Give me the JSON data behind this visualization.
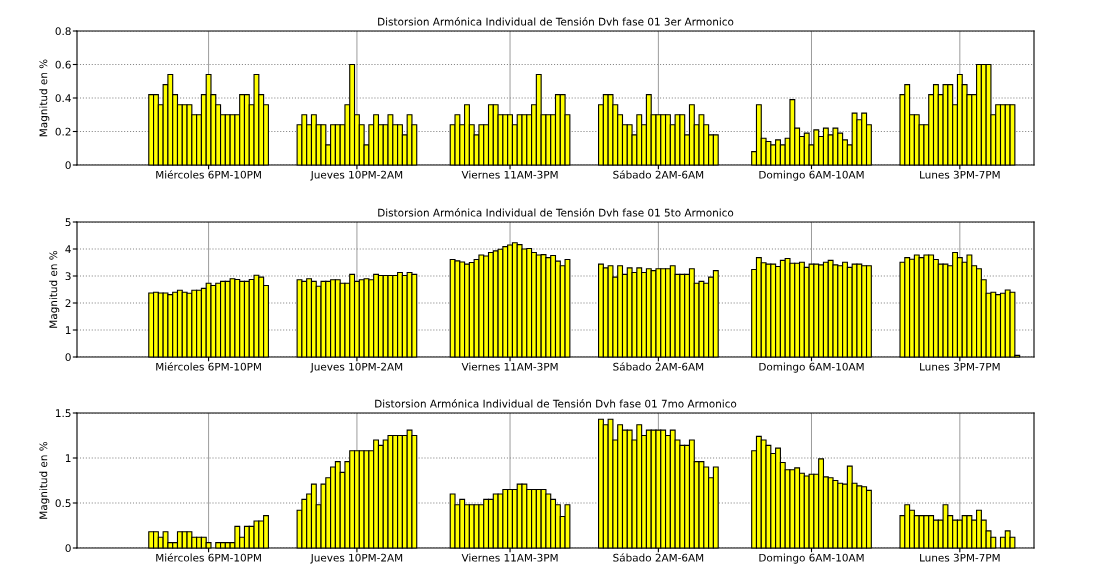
{
  "chart_data": [
    {
      "type": "bar",
      "title": "Distorsion Armónica Individual de Tensión Dvh fase 01 3er Armonico",
      "ylabel": "Magnitud en %",
      "color": "#ffff00",
      "grid": true,
      "categories": [
        null,
        null,
        null,
        null,
        null,
        null,
        null,
        null,
        null,
        null,
        null,
        null,
        null,
        null,
        null,
        null,
        null,
        null,
        null,
        null,
        null,
        null,
        null,
        null,
        null,
        null,
        null,
        "Miércoles 6PM-10PM",
        null,
        null,
        null,
        null,
        null,
        null,
        null,
        null,
        null,
        null,
        null,
        null,
        null,
        null,
        null,
        null,
        null,
        null,
        null,
        null,
        null,
        null,
        null,
        null,
        null,
        null,
        null,
        null,
        null,
        null,
        "Jueves 10PM-2AM",
        null,
        null,
        null,
        null,
        null,
        null,
        null,
        null,
        null,
        null,
        null,
        null,
        null,
        null,
        null,
        null,
        null,
        null,
        null,
        null,
        null,
        null,
        null,
        null,
        null,
        null,
        null,
        null,
        null,
        null,
        null,
        "Viernes 11AM-3PM",
        null,
        null,
        null,
        null,
        null,
        null,
        null,
        null,
        null,
        null,
        null,
        null,
        null,
        null,
        null,
        null,
        null,
        null,
        null,
        null,
        null,
        null,
        null,
        null,
        null,
        null,
        null,
        null,
        null,
        null,
        "Sábado 2AM-6AM",
        null,
        null,
        null,
        null,
        null,
        null,
        null,
        null,
        null,
        null,
        null,
        null,
        null,
        null,
        null,
        null,
        null,
        null,
        null,
        null,
        null,
        null,
        null,
        null,
        null,
        null,
        null,
        null,
        null,
        null,
        null,
        "Domingo 6AM-10AM",
        null,
        null,
        null,
        null,
        null,
        null,
        null,
        null,
        null,
        null,
        null,
        null,
        null,
        null,
        null,
        null,
        null,
        null,
        null,
        null,
        null,
        null,
        null,
        null,
        null,
        null,
        null,
        null,
        null,
        null,
        "Lunes 3PM-7PM",
        null,
        null,
        null,
        null,
        null,
        null,
        null,
        null,
        null,
        null,
        null,
        null,
        null,
        null,
        null
      ],
      "values": [
        null,
        null,
        null,
        null,
        null,
        null,
        null,
        null,
        null,
        null,
        null,
        null,
        null,
        null,
        null,
        0.42,
        0.42,
        0.36,
        0.48,
        0.54,
        0.42,
        0.36,
        0.36,
        0.36,
        0.3,
        0.3,
        0.42,
        0.54,
        0.42,
        0.36,
        0.3,
        0.3,
        0.3,
        0.3,
        0.42,
        0.42,
        0.36,
        0.54,
        0.42,
        0.36,
        null,
        null,
        null,
        null,
        null,
        null,
        0.24,
        0.3,
        0.24,
        0.3,
        0.24,
        0.24,
        0.12,
        0.24,
        0.24,
        0.24,
        0.36,
        0.6,
        0.3,
        0.24,
        0.12,
        0.24,
        0.3,
        0.24,
        0.24,
        0.3,
        0.24,
        0.24,
        0.18,
        0.3,
        0.24,
        null,
        null,
        null,
        null,
        null,
        null,
        null,
        0.24,
        0.3,
        0.24,
        0.36,
        0.24,
        0.18,
        0.24,
        0.24,
        0.36,
        0.36,
        0.3,
        0.3,
        0.3,
        0.24,
        0.3,
        0.3,
        0.3,
        0.36,
        0.54,
        0.3,
        0.3,
        0.3,
        0.42,
        0.42,
        0.3,
        null,
        null,
        null,
        null,
        null,
        null,
        0.36,
        0.42,
        0.42,
        0.36,
        0.3,
        0.24,
        0.24,
        0.18,
        0.3,
        0.24,
        0.42,
        0.3,
        0.3,
        0.3,
        0.3,
        0.24,
        0.3,
        0.3,
        0.18,
        0.36,
        0.24,
        0.3,
        0.24,
        0.18,
        0.18,
        null,
        null,
        null,
        null,
        null,
        null,
        null,
        0.08,
        0.36,
        0.16,
        0.14,
        0.12,
        0.15,
        0.12,
        0.16,
        0.39,
        0.22,
        0.17,
        0.19,
        0.12,
        0.21,
        0.17,
        0.22,
        0.18,
        0.22,
        0.19,
        0.15,
        0.12,
        0.31,
        0.27,
        0.31,
        0.24,
        null,
        null,
        null,
        null,
        null,
        null,
        0.42,
        0.48,
        0.3,
        0.3,
        0.24,
        0.24,
        0.42,
        0.48,
        0.42,
        0.48,
        0.48,
        0.36,
        0.54,
        0.48,
        0.42,
        0.42,
        0.6,
        0.6,
        0.6,
        0.3,
        0.36,
        0.36,
        0.36,
        0.36,
        null,
        null,
        null,
        null
      ],
      "ylim": [
        0,
        0.8
      ],
      "yticks": [
        0,
        0.2,
        0.4,
        0.6,
        0.8
      ]
    },
    {
      "type": "bar",
      "title": "Distorsion Armónica Individual de Tensión Dvh fase 01 5to Armonico",
      "ylabel": "Magnitud en %",
      "color": "#ffff00",
      "grid": true,
      "categories": [
        null,
        null,
        null,
        null,
        null,
        null,
        null,
        null,
        null,
        null,
        null,
        null,
        null,
        null,
        null,
        null,
        null,
        null,
        null,
        null,
        null,
        null,
        null,
        null,
        null,
        null,
        null,
        "Miércoles 6PM-10PM",
        null,
        null,
        null,
        null,
        null,
        null,
        null,
        null,
        null,
        null,
        null,
        null,
        null,
        null,
        null,
        null,
        null,
        null,
        null,
        null,
        null,
        null,
        null,
        null,
        null,
        null,
        null,
        null,
        null,
        null,
        "Jueves 10PM-2AM",
        null,
        null,
        null,
        null,
        null,
        null,
        null,
        null,
        null,
        null,
        null,
        null,
        null,
        null,
        null,
        null,
        null,
        null,
        null,
        null,
        null,
        null,
        null,
        null,
        null,
        null,
        null,
        null,
        null,
        null,
        null,
        "Viernes 11AM-3PM",
        null,
        null,
        null,
        null,
        null,
        null,
        null,
        null,
        null,
        null,
        null,
        null,
        null,
        null,
        null,
        null,
        null,
        null,
        null,
        null,
        null,
        null,
        null,
        null,
        null,
        null,
        null,
        null,
        null,
        null,
        "Sábado 2AM-6AM",
        null,
        null,
        null,
        null,
        null,
        null,
        null,
        null,
        null,
        null,
        null,
        null,
        null,
        null,
        null,
        null,
        null,
        null,
        null,
        null,
        null,
        null,
        null,
        null,
        null,
        null,
        null,
        null,
        null,
        null,
        null,
        "Domingo 6AM-10AM",
        null,
        null,
        null,
        null,
        null,
        null,
        null,
        null,
        null,
        null,
        null,
        null,
        null,
        null,
        null,
        null,
        null,
        null,
        null,
        null,
        null,
        null,
        null,
        null,
        null,
        null,
        null,
        null,
        null,
        null,
        "Lunes 3PM-7PM",
        null,
        null,
        null,
        null,
        null,
        null,
        null,
        null,
        null,
        null,
        null,
        null,
        null,
        null,
        null
      ],
      "values": [
        null,
        null,
        null,
        null,
        null,
        null,
        null,
        null,
        null,
        null,
        null,
        null,
        null,
        null,
        null,
        2.37,
        2.4,
        2.37,
        2.37,
        2.31,
        2.4,
        2.47,
        2.4,
        2.36,
        2.47,
        2.47,
        2.54,
        2.73,
        2.65,
        2.73,
        2.8,
        2.8,
        2.9,
        2.87,
        2.8,
        2.8,
        2.87,
        3.03,
        2.96,
        2.65,
        null,
        null,
        null,
        null,
        null,
        null,
        2.86,
        2.8,
        2.9,
        2.8,
        2.62,
        2.8,
        2.8,
        2.86,
        2.86,
        2.73,
        2.73,
        3.06,
        2.8,
        2.86,
        2.9,
        2.86,
        3.06,
        3.02,
        3.02,
        3.02,
        3.02,
        3.13,
        3.02,
        3.13,
        3.06,
        null,
        null,
        null,
        null,
        null,
        null,
        null,
        3.61,
        3.56,
        3.52,
        3.44,
        3.5,
        3.61,
        3.78,
        3.74,
        3.87,
        3.93,
        3.99,
        4.09,
        4.15,
        4.23,
        4.16,
        4.0,
        4.02,
        3.87,
        3.78,
        3.79,
        3.68,
        3.76,
        3.55,
        3.38,
        3.61,
        null,
        null,
        null,
        null,
        null,
        null,
        3.44,
        3.3,
        3.38,
        2.96,
        3.38,
        3.06,
        3.3,
        3.13,
        3.3,
        3.13,
        3.27,
        3.2,
        3.27,
        3.27,
        3.27,
        3.38,
        3.06,
        3.06,
        3.06,
        3.27,
        2.73,
        2.8,
        2.73,
        2.96,
        3.2,
        null,
        null,
        null,
        null,
        null,
        null,
        null,
        3.24,
        3.68,
        3.49,
        3.44,
        3.44,
        3.35,
        3.58,
        3.65,
        3.47,
        3.47,
        3.51,
        3.32,
        3.44,
        3.44,
        3.41,
        3.51,
        3.58,
        3.41,
        3.38,
        3.51,
        3.32,
        3.44,
        3.44,
        3.38,
        3.38,
        null,
        null,
        null,
        null,
        null,
        null,
        3.51,
        3.68,
        3.62,
        3.78,
        3.68,
        3.78,
        3.78,
        3.61,
        3.44,
        3.44,
        3.38,
        3.87,
        3.68,
        3.51,
        3.78,
        3.38,
        3.27,
        2.86,
        2.36,
        2.4,
        2.31,
        2.36,
        2.48,
        2.4,
        0.06,
        null,
        null,
        null
      ],
      "ylim": [
        0,
        5
      ],
      "yticks": [
        0,
        1,
        2,
        3,
        4,
        5
      ]
    },
    {
      "type": "bar",
      "title": "Distorsion Armónica Individual de Tensión Dvh fase 01 7mo Armonico",
      "ylabel": "Magnitud en %",
      "color": "#ffff00",
      "grid": true,
      "categories": [
        null,
        null,
        null,
        null,
        null,
        null,
        null,
        null,
        null,
        null,
        null,
        null,
        null,
        null,
        null,
        null,
        null,
        null,
        null,
        null,
        null,
        null,
        null,
        null,
        null,
        null,
        null,
        "Miércoles 6PM-10PM",
        null,
        null,
        null,
        null,
        null,
        null,
        null,
        null,
        null,
        null,
        null,
        null,
        null,
        null,
        null,
        null,
        null,
        null,
        null,
        null,
        null,
        null,
        null,
        null,
        null,
        null,
        null,
        null,
        null,
        null,
        "Jueves 10PM-2AM",
        null,
        null,
        null,
        null,
        null,
        null,
        null,
        null,
        null,
        null,
        null,
        null,
        null,
        null,
        null,
        null,
        null,
        null,
        null,
        null,
        null,
        null,
        null,
        null,
        null,
        null,
        null,
        null,
        null,
        null,
        null,
        "Viernes 11AM-3PM",
        null,
        null,
        null,
        null,
        null,
        null,
        null,
        null,
        null,
        null,
        null,
        null,
        null,
        null,
        null,
        null,
        null,
        null,
        null,
        null,
        null,
        null,
        null,
        null,
        null,
        null,
        null,
        null,
        null,
        null,
        "Sábado 2AM-6AM",
        null,
        null,
        null,
        null,
        null,
        null,
        null,
        null,
        null,
        null,
        null,
        null,
        null,
        null,
        null,
        null,
        null,
        null,
        null,
        null,
        null,
        null,
        null,
        null,
        null,
        null,
        null,
        null,
        null,
        null,
        null,
        "Domingo 6AM-10AM",
        null,
        null,
        null,
        null,
        null,
        null,
        null,
        null,
        null,
        null,
        null,
        null,
        null,
        null,
        null,
        null,
        null,
        null,
        null,
        null,
        null,
        null,
        null,
        null,
        null,
        null,
        null,
        null,
        null,
        null,
        "Lunes 3PM-7PM",
        null,
        null,
        null,
        null,
        null,
        null,
        null,
        null,
        null,
        null,
        null,
        null,
        null,
        null,
        null
      ],
      "values": [
        null,
        null,
        null,
        null,
        null,
        null,
        null,
        null,
        null,
        null,
        null,
        null,
        null,
        null,
        null,
        0.18,
        0.18,
        0.12,
        0.18,
        0.06,
        0.06,
        0.18,
        0.18,
        0.18,
        0.12,
        0.12,
        0.12,
        0.06,
        null,
        0.06,
        0.06,
        0.06,
        0.06,
        0.24,
        0.12,
        0.24,
        0.24,
        0.3,
        0.3,
        0.36,
        null,
        null,
        null,
        null,
        null,
        null,
        0.42,
        0.54,
        0.6,
        0.71,
        0.48,
        0.71,
        0.78,
        0.9,
        0.96,
        0.84,
        0.96,
        1.08,
        1.08,
        1.08,
        1.08,
        1.08,
        1.2,
        1.14,
        1.2,
        1.25,
        1.25,
        1.25,
        1.25,
        1.31,
        1.25,
        null,
        null,
        null,
        null,
        null,
        null,
        null,
        0.6,
        0.48,
        0.54,
        0.48,
        0.48,
        0.48,
        0.48,
        0.54,
        0.54,
        0.6,
        0.6,
        0.65,
        0.65,
        0.65,
        0.71,
        0.71,
        0.65,
        0.65,
        0.65,
        0.65,
        0.6,
        0.54,
        0.48,
        0.35,
        0.48,
        null,
        null,
        null,
        null,
        null,
        null,
        1.43,
        1.37,
        1.43,
        1.2,
        1.37,
        1.31,
        1.31,
        1.2,
        1.37,
        1.25,
        1.31,
        1.31,
        1.31,
        1.31,
        1.25,
        1.31,
        1.2,
        1.14,
        1.14,
        1.2,
        0.96,
        0.96,
        0.9,
        0.78,
        0.9,
        null,
        null,
        null,
        null,
        null,
        null,
        null,
        1.08,
        1.24,
        1.2,
        1.14,
        1.05,
        1.11,
        0.95,
        0.87,
        0.87,
        0.89,
        0.83,
        0.8,
        0.82,
        0.82,
        0.99,
        0.79,
        0.78,
        0.75,
        0.72,
        0.71,
        0.91,
        0.72,
        0.69,
        0.68,
        0.64,
        null,
        null,
        null,
        null,
        null,
        null,
        0.36,
        0.48,
        0.42,
        0.36,
        0.36,
        0.36,
        0.36,
        0.31,
        0.31,
        0.48,
        0.36,
        0.31,
        0.31,
        0.36,
        0.36,
        0.31,
        0.42,
        0.31,
        0.19,
        0.12,
        null,
        0.12,
        0.19,
        0.12,
        null,
        null,
        null,
        null
      ],
      "ylim": [
        0,
        1.5
      ],
      "yticks": [
        0,
        0.5,
        1,
        1.5
      ]
    }
  ]
}
